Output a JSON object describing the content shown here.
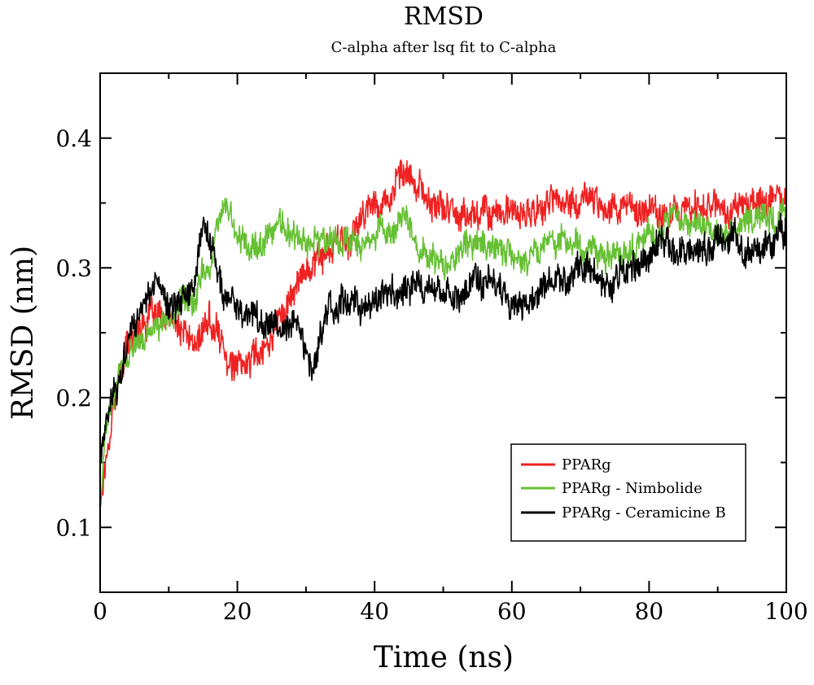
{
  "chart_data": {
    "type": "line",
    "title": "RMSD",
    "subtitle": "C-alpha after lsq fit to C-alpha",
    "xlabel": "Time (ns)",
    "ylabel": "RMSD (nm)",
    "xlim": [
      0,
      100
    ],
    "ylim": [
      0.05,
      0.45
    ],
    "xticks": [
      0,
      20,
      40,
      60,
      80,
      100
    ],
    "xtick_labels": [
      "0",
      "20",
      "40",
      "60",
      "80",
      "100"
    ],
    "yticks": [
      0.1,
      0.2,
      0.3,
      0.4
    ],
    "ytick_labels": [
      "0.1",
      "0.2",
      "0.3",
      "0.4"
    ],
    "grid": false,
    "legend_position": "lower-right",
    "series": [
      {
        "name": "PPARg",
        "color": "#ee2222",
        "noise": 0.009,
        "x": [
          0,
          1,
          2,
          3,
          4,
          5,
          6,
          8,
          10,
          12,
          14,
          15,
          16,
          18,
          20,
          22,
          24,
          26,
          28,
          30,
          32,
          34,
          36,
          38,
          40,
          42,
          44,
          46,
          48,
          50,
          52,
          54,
          56,
          58,
          60,
          62,
          64,
          66,
          68,
          70,
          72,
          74,
          76,
          78,
          80,
          82,
          84,
          86,
          88,
          90,
          92,
          94,
          96,
          98,
          100
        ],
        "values": [
          0.12,
          0.16,
          0.2,
          0.22,
          0.24,
          0.25,
          0.26,
          0.26,
          0.26,
          0.25,
          0.24,
          0.25,
          0.26,
          0.24,
          0.22,
          0.23,
          0.24,
          0.26,
          0.28,
          0.3,
          0.31,
          0.315,
          0.32,
          0.335,
          0.35,
          0.355,
          0.37,
          0.365,
          0.35,
          0.345,
          0.345,
          0.34,
          0.345,
          0.345,
          0.34,
          0.34,
          0.345,
          0.35,
          0.35,
          0.35,
          0.355,
          0.35,
          0.345,
          0.345,
          0.345,
          0.345,
          0.345,
          0.345,
          0.35,
          0.35,
          0.345,
          0.35,
          0.35,
          0.355,
          0.355
        ]
      },
      {
        "name": "PPARg - Nimbolide",
        "color": "#66c033",
        "noise": 0.008,
        "x": [
          0,
          1,
          2,
          3,
          4,
          5,
          6,
          8,
          10,
          12,
          14,
          16,
          18,
          20,
          22,
          24,
          26,
          28,
          30,
          32,
          34,
          36,
          38,
          40,
          42,
          44,
          46,
          48,
          50,
          52,
          54,
          56,
          58,
          60,
          62,
          64,
          66,
          68,
          70,
          72,
          74,
          76,
          78,
          80,
          82,
          84,
          86,
          88,
          90,
          92,
          94,
          96,
          98,
          100
        ],
        "values": [
          0.13,
          0.18,
          0.2,
          0.22,
          0.23,
          0.24,
          0.25,
          0.255,
          0.26,
          0.27,
          0.28,
          0.3,
          0.35,
          0.33,
          0.315,
          0.32,
          0.33,
          0.325,
          0.32,
          0.32,
          0.32,
          0.325,
          0.32,
          0.325,
          0.33,
          0.34,
          0.32,
          0.305,
          0.3,
          0.31,
          0.32,
          0.32,
          0.315,
          0.31,
          0.31,
          0.315,
          0.32,
          0.32,
          0.315,
          0.315,
          0.31,
          0.31,
          0.315,
          0.32,
          0.33,
          0.34,
          0.34,
          0.335,
          0.33,
          0.33,
          0.335,
          0.34,
          0.335,
          0.34
        ]
      },
      {
        "name": "PPARg - Ceramicine B",
        "color": "#000000",
        "noise": 0.009,
        "x": [
          0,
          1,
          2,
          3,
          4,
          5,
          6,
          8,
          10,
          12,
          14,
          15,
          16,
          17,
          18,
          20,
          22,
          24,
          26,
          28,
          30,
          31,
          32,
          34,
          36,
          38,
          40,
          42,
          44,
          46,
          48,
          50,
          52,
          54,
          56,
          58,
          60,
          62,
          64,
          66,
          68,
          70,
          72,
          74,
          76,
          78,
          80,
          82,
          84,
          86,
          88,
          90,
          92,
          94,
          96,
          98,
          100
        ],
        "values": [
          0.15,
          0.19,
          0.2,
          0.22,
          0.24,
          0.26,
          0.27,
          0.29,
          0.27,
          0.27,
          0.29,
          0.34,
          0.32,
          0.3,
          0.28,
          0.27,
          0.27,
          0.26,
          0.25,
          0.26,
          0.24,
          0.22,
          0.25,
          0.27,
          0.275,
          0.27,
          0.275,
          0.28,
          0.28,
          0.29,
          0.285,
          0.28,
          0.28,
          0.285,
          0.285,
          0.28,
          0.27,
          0.28,
          0.285,
          0.29,
          0.295,
          0.3,
          0.3,
          0.285,
          0.305,
          0.305,
          0.31,
          0.32,
          0.31,
          0.32,
          0.315,
          0.32,
          0.325,
          0.31,
          0.315,
          0.32,
          0.33
        ]
      }
    ]
  }
}
